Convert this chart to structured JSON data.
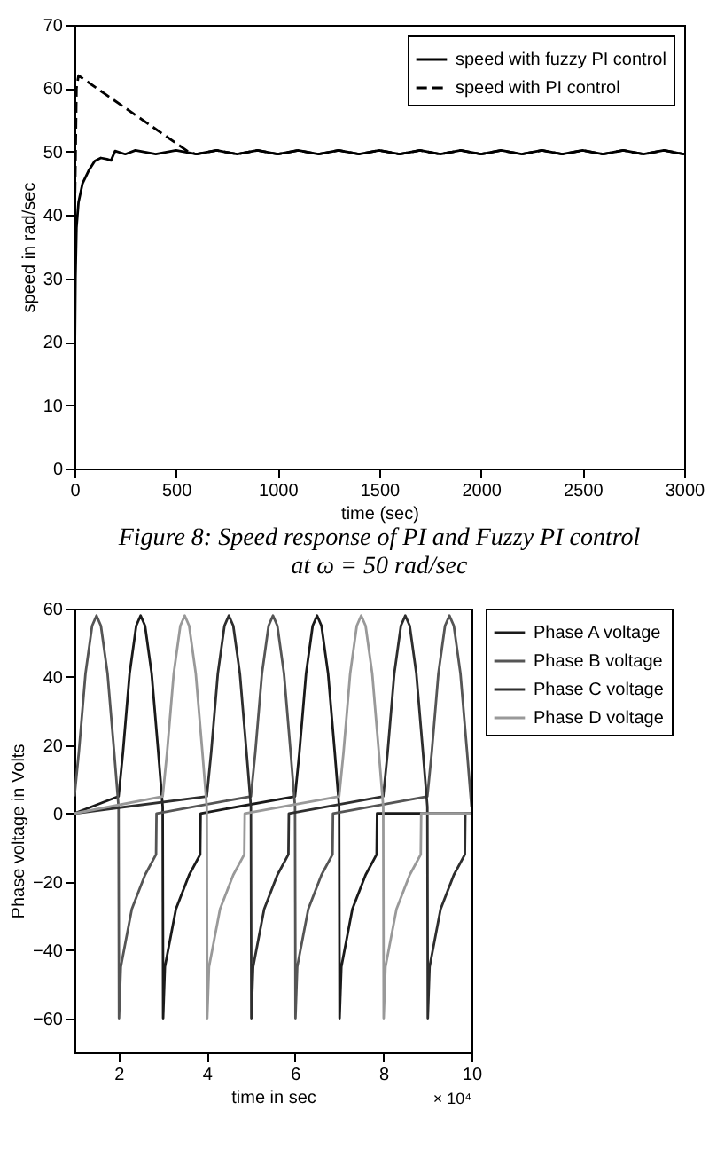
{
  "chart_data": [
    {
      "type": "line",
      "title": "Figure 8:  Speed response of PI and Fuzzy PI control at ω = 50 rad/sec",
      "xlabel": "time (sec)",
      "ylabel": "speed in rad/sec",
      "xlim": [
        0,
        3000
      ],
      "ylim": [
        0,
        70
      ],
      "xticks": [
        0,
        500,
        1000,
        1500,
        2000,
        2500,
        3000
      ],
      "yticks": [
        0,
        10,
        20,
        30,
        40,
        50,
        60,
        70
      ],
      "legend": "top right",
      "series": [
        {
          "name": "speed with fuzzy PI control",
          "color": "#000000",
          "line_style": "solid",
          "x": [
            0,
            5,
            10,
            20,
            40,
            70,
            100,
            130,
            160,
            180,
            200,
            250,
            300,
            400,
            500,
            600,
            700,
            800,
            900,
            1000,
            1100,
            1200,
            1300,
            1400,
            1500,
            1600,
            1700,
            1800,
            1900,
            2000,
            2100,
            2200,
            2300,
            2400,
            2500,
            2600,
            2700,
            2800,
            2900,
            3000
          ],
          "values": [
            10,
            30,
            38,
            42,
            45,
            47,
            48.5,
            49,
            48.8,
            48.6,
            50.1,
            49.6,
            50.2,
            49.6,
            50.2,
            49.6,
            50.2,
            49.6,
            50.2,
            49.6,
            50.2,
            49.6,
            50.2,
            49.6,
            50.2,
            49.6,
            50.2,
            49.6,
            50.2,
            49.6,
            50.2,
            49.6,
            50.2,
            49.6,
            50.2,
            49.6,
            50.2,
            49.6,
            50.2,
            49.6
          ]
        },
        {
          "name": "speed with PI control",
          "color": "#000000",
          "line_style": "dashed",
          "x": [
            0,
            10,
            20,
            560,
            600,
            700,
            800,
            900,
            1000,
            1100,
            1200,
            1300,
            1400,
            1500,
            1600,
            1700,
            1800,
            1900,
            2000,
            2100,
            2200,
            2300,
            2400,
            2500,
            2600,
            2700,
            2800,
            2900,
            3000
          ],
          "values": [
            36,
            60,
            62,
            50,
            49.6,
            50.2,
            49.6,
            50.2,
            49.6,
            50.2,
            49.6,
            50.2,
            49.6,
            50.2,
            49.6,
            50.2,
            49.6,
            50.2,
            49.6,
            50.2,
            49.6,
            50.2,
            49.6,
            50.2,
            49.6,
            50.2,
            49.6,
            50.2,
            49.6
          ]
        }
      ]
    },
    {
      "type": "line",
      "xlabel": "time in sec",
      "ylabel": "Phase voltage in Volts",
      "annotations": [
        "× 10⁴"
      ],
      "xlim": [
        1,
        10
      ],
      "ylim": [
        -70,
        60
      ],
      "xticks": [
        2,
        4,
        6,
        8,
        10
      ],
      "yticks": [
        -60,
        -40,
        -20,
        0,
        20,
        40,
        60
      ],
      "legend": "right",
      "series": [
        {
          "name": "Phase A voltage",
          "color": "#1a1a1a",
          "x": [
            1,
            2,
            2.1,
            2.25,
            2.4,
            2.5,
            2.6,
            2.75,
            2.9,
            3,
            3.01,
            3.05,
            3.3,
            3.6,
            3.85,
            3.86,
            6,
            6.1,
            6.25,
            6.4,
            6.5,
            6.6,
            6.75,
            6.9,
            7,
            7.01,
            7.05,
            7.3,
            7.6,
            7.85,
            7.86,
            10
          ],
          "values": [
            0,
            5,
            18,
            41,
            55,
            58,
            55,
            41,
            18,
            2,
            -60,
            -45,
            -28,
            -18,
            -12,
            0,
            5,
            18,
            41,
            55,
            58,
            55,
            41,
            18,
            2,
            -60,
            -45,
            -28,
            -18,
            -12,
            0,
            0
          ]
        },
        {
          "name": "Phase B voltage",
          "color": "#555555",
          "x": [
            1,
            1.1,
            1.25,
            1.4,
            1.5,
            1.6,
            1.75,
            1.9,
            2,
            2.01,
            2.05,
            2.3,
            2.6,
            2.85,
            2.86,
            5,
            5.1,
            5.25,
            5.4,
            5.5,
            5.6,
            5.75,
            5.9,
            6,
            6.01,
            6.05,
            6.3,
            6.6,
            6.85,
            6.86,
            9,
            9.1,
            9.25,
            9.4,
            9.5,
            9.6,
            9.75,
            9.9,
            10
          ],
          "values": [
            5,
            18,
            41,
            55,
            58,
            55,
            41,
            18,
            2,
            -60,
            -45,
            -28,
            -18,
            -12,
            0,
            5,
            18,
            41,
            55,
            58,
            55,
            41,
            18,
            2,
            -60,
            -45,
            -28,
            -18,
            -12,
            0,
            5,
            18,
            41,
            55,
            58,
            55,
            41,
            18,
            2
          ]
        },
        {
          "name": "Phase C voltage",
          "color": "#2e2e2e",
          "x": [
            1,
            4,
            4.1,
            4.25,
            4.4,
            4.5,
            4.6,
            4.75,
            4.9,
            5,
            5.01,
            5.05,
            5.3,
            5.6,
            5.85,
            5.86,
            8,
            8.1,
            8.25,
            8.4,
            8.5,
            8.6,
            8.75,
            8.9,
            9,
            9.01,
            9.05,
            9.3,
            9.6,
            9.85,
            9.86,
            10
          ],
          "values": [
            0,
            5,
            18,
            41,
            55,
            58,
            55,
            41,
            18,
            2,
            -60,
            -45,
            -28,
            -18,
            -12,
            0,
            5,
            18,
            41,
            55,
            58,
            55,
            41,
            18,
            2,
            -60,
            -45,
            -28,
            -18,
            -12,
            0,
            0
          ]
        },
        {
          "name": "Phase D voltage",
          "color": "#999999",
          "x": [
            1,
            3,
            3.1,
            3.25,
            3.4,
            3.5,
            3.6,
            3.75,
            3.9,
            4,
            4.01,
            4.05,
            4.3,
            4.6,
            4.85,
            4.86,
            7,
            7.1,
            7.25,
            7.4,
            7.5,
            7.6,
            7.75,
            7.9,
            8,
            8.01,
            8.05,
            8.3,
            8.6,
            8.85,
            8.86,
            10
          ],
          "values": [
            0,
            5,
            18,
            41,
            55,
            58,
            55,
            41,
            18,
            2,
            -60,
            -45,
            -28,
            -18,
            -12,
            0,
            5,
            18,
            41,
            55,
            58,
            55,
            41,
            18,
            2,
            -60,
            -45,
            -28,
            -18,
            -12,
            0,
            0
          ]
        }
      ]
    }
  ]
}
